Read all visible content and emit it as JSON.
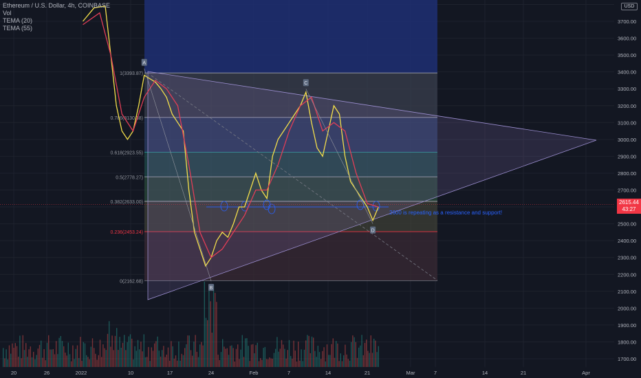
{
  "legend": {
    "symbol": "Ethereum / U.S. Dollar, 4h, COINBASE",
    "vol": "Vol",
    "tema20": "TEMA (20)",
    "tema55": "TEMA (55)"
  },
  "currency": "USD",
  "price_tag": {
    "price": "2615.44",
    "countdown": "43:27"
  },
  "colors": {
    "background": "#131722",
    "price_tag": "#f23645",
    "fib_red": "#f23645",
    "fib_text": "#787b86",
    "tema20": "#f5e04b",
    "tema55": "#e23e57",
    "annotation": "#2962ff"
  },
  "annotation_text": "2600 is repeating as a resistance and support!",
  "points": [
    {
      "label": "A",
      "date": "Jan 12",
      "price": 3420
    },
    {
      "label": "B",
      "date": "Jan 24",
      "price": 2160
    },
    {
      "label": "C",
      "date": "Feb 10",
      "price": 3300
    },
    {
      "label": "D",
      "date": "Feb 22",
      "price": 2500
    }
  ],
  "fib_levels": [
    {
      "ratio": "1",
      "price": "3393.87",
      "label": "1(3393.87)"
    },
    {
      "ratio": "0.786",
      "price": "3130.38",
      "label": "0.786(3130.38)"
    },
    {
      "ratio": "0.618",
      "price": "2923.55",
      "label": "0.618(2923.55)"
    },
    {
      "ratio": "0.5",
      "price": "2778.27",
      "label": "0.5(2778.27)"
    },
    {
      "ratio": "0.382",
      "price": "2633.00",
      "label": "0.382(2633.00)"
    },
    {
      "ratio": "0.236",
      "price": "2453.24",
      "label": "0.236(2453.24)"
    },
    {
      "ratio": "0",
      "price": "2162.68",
      "label": "0(2162.68)"
    }
  ],
  "chart_data": {
    "type": "line",
    "title": "Ethereum / U.S. Dollar, 4h, COINBASE",
    "xlabel": "",
    "ylabel": "",
    "ylim": [
      1650,
      3800
    ],
    "grid": true,
    "y_ticks": [
      "1700.00",
      "1800.00",
      "1900.00",
      "2000.00",
      "2100.00",
      "2200.00",
      "2300.00",
      "2400.00",
      "2500.00",
      "2600.00",
      "2700.00",
      "2800.00",
      "2900.00",
      "3000.00",
      "3100.00",
      "3200.00",
      "3300.00",
      "3400.00",
      "3500.00",
      "3600.00",
      "3700.00",
      "3800.00"
    ],
    "x_ticks": [
      "20",
      "26",
      "2022",
      "10",
      "17",
      "24",
      "Feb",
      "7",
      "14",
      "21",
      "Mar",
      "7",
      "14",
      "21",
      "Apr"
    ],
    "series": [
      {
        "name": "TEMA (20)",
        "x": [
          "Jan 1",
          "Jan 3",
          "Jan 5",
          "Jan 6",
          "Jan 7",
          "Jan 8",
          "Jan 9",
          "Jan 10",
          "Jan 11",
          "Jan 12",
          "Jan 13",
          "Jan 14",
          "Jan 15",
          "Jan 16",
          "Jan 17",
          "Jan 18",
          "Jan 19",
          "Jan 20",
          "Jan 21",
          "Jan 22",
          "Jan 23",
          "Jan 24",
          "Jan 25",
          "Jan 26",
          "Jan 27",
          "Jan 28",
          "Jan 29",
          "Jan 30",
          "Jan 31",
          "Feb 1",
          "Feb 2",
          "Feb 3",
          "Feb 4",
          "Feb 5",
          "Feb 6",
          "Feb 7",
          "Feb 8",
          "Feb 9",
          "Feb 10",
          "Feb 11",
          "Feb 12",
          "Feb 13",
          "Feb 14",
          "Feb 15",
          "Feb 16",
          "Feb 17",
          "Feb 18",
          "Feb 19",
          "Feb 20",
          "Feb 21",
          "Feb 22",
          "Feb 23"
        ],
        "values": [
          3700,
          3780,
          3790,
          3500,
          3200,
          3050,
          3000,
          3050,
          3200,
          3380,
          3360,
          3340,
          3300,
          3250,
          3150,
          3100,
          3050,
          2700,
          2450,
          2350,
          2250,
          2300,
          2400,
          2450,
          2420,
          2500,
          2600,
          2600,
          2700,
          2800,
          2700,
          2650,
          2900,
          3000,
          3050,
          3100,
          3150,
          3200,
          3280,
          3100,
          2950,
          2900,
          3050,
          3200,
          3150,
          2900,
          2750,
          2700,
          2650,
          2600,
          2520,
          2600
        ]
      },
      {
        "name": "TEMA (55)",
        "x": [
          "Jan 1",
          "Jan 4",
          "Jan 6",
          "Jan 8",
          "Jan 10",
          "Jan 12",
          "Jan 14",
          "Jan 16",
          "Jan 18",
          "Jan 20",
          "Jan 22",
          "Jan 24",
          "Jan 26",
          "Jan 28",
          "Jan 30",
          "Feb 1",
          "Feb 3",
          "Feb 5",
          "Feb 7",
          "Feb 9",
          "Feb 11",
          "Feb 13",
          "Feb 15",
          "Feb 17",
          "Feb 19",
          "Feb 21",
          "Feb 23"
        ],
        "values": [
          3680,
          3750,
          3500,
          3150,
          3050,
          3250,
          3350,
          3300,
          3200,
          2850,
          2450,
          2300,
          2350,
          2450,
          2550,
          2700,
          2700,
          2850,
          3050,
          3200,
          3250,
          3050,
          3100,
          3050,
          2800,
          2620,
          2600
        ]
      }
    ]
  }
}
